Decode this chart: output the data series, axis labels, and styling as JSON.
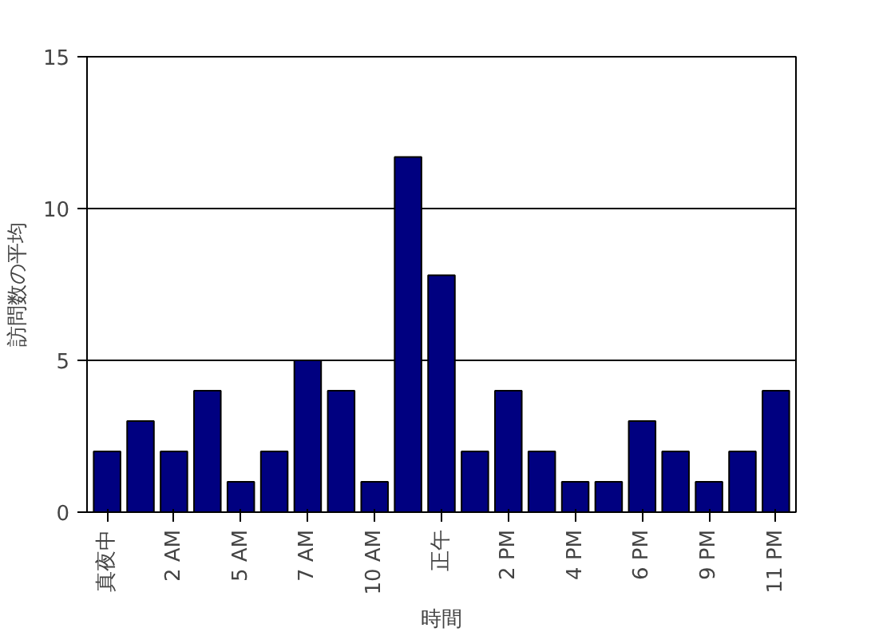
{
  "chart_data": {
    "type": "bar",
    "xlabel": "時間",
    "ylabel": "訪問数の平均",
    "categories": [
      "真夜中",
      null,
      "2 AM",
      null,
      "5 AM",
      null,
      "7 AM",
      null,
      "10 AM",
      null,
      "正午",
      null,
      "2 PM",
      null,
      "4 PM",
      null,
      "6 PM",
      null,
      "9 PM",
      null,
      "11 PM"
    ],
    "values": [
      2,
      3,
      2,
      4,
      1,
      2,
      5,
      4,
      1,
      11.7,
      7.8,
      2,
      4,
      2,
      1,
      1,
      3,
      2,
      1,
      2,
      4
    ],
    "color": "#000080",
    "ylim": [
      0,
      15
    ],
    "yticks": [
      0,
      5,
      10,
      15
    ],
    "grid": "y"
  }
}
